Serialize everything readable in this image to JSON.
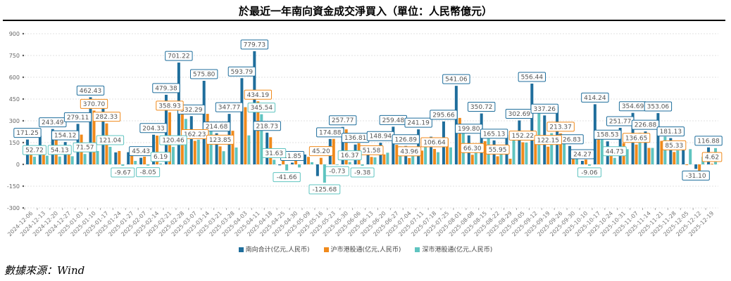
{
  "title": "於最近一年南向資金成交淨買入（單位：人民幣億元）",
  "source": "數據來源：Wind",
  "chart_data": {
    "type": "bar",
    "title": "於最近一年南向資金成交淨買入（單位：人民幣億元）",
    "xlabel": "",
    "ylabel": "",
    "ylim": [
      -300,
      900
    ],
    "yticks": [
      -300,
      -150,
      0,
      150,
      300,
      450,
      600,
      750,
      900
    ],
    "grid": true,
    "legend_position": "bottom",
    "categories": [
      "2024-12-06",
      "2024-12-13",
      "2024-12-20",
      "2024-12-27",
      "2025-01-03",
      "2025-01-10",
      "2025-01-17",
      "2025-01-24",
      "2025-01-27",
      "2025-02-07",
      "2025-02-14",
      "2025-02-21",
      "2025-02-28",
      "2025-03-07",
      "2025-03-14",
      "2025-03-21",
      "2025-03-28",
      "2025-04-03",
      "2025-04-11",
      "2025-04-18",
      "2025-04-25",
      "2025-04-30",
      "2025-05-09",
      "2025-05-16",
      "2025-05-23",
      "2025-05-30",
      "2025-06-06",
      "2025-06-13",
      "2025-06-20",
      "2025-06-27",
      "2025-07-04",
      "2025-07-11",
      "2025-07-18",
      "2025-07-25",
      "2025-08-01",
      "2025-08-08",
      "2025-08-15",
      "2025-08-22",
      "2025-08-29",
      "2025-09-05",
      "2025-09-12",
      "2025-09-19",
      "2025-09-26",
      "2025-09-30",
      "2025-10-10",
      "2025-10-17",
      "2025-10-24",
      "2025-10-31",
      "2025-11-07",
      "2025-11-14",
      "2025-11-21",
      "2025-11-28",
      "2025-12-05",
      "2025-12-12",
      "2025-12-19"
    ],
    "series": [
      {
        "name": "南向合计(亿元,人民币)",
        "color": "#1f6e9c",
        "values": [
          171.25,
          197,
          243.49,
          154.12,
          279.11,
          462.43,
          403.37,
          82.6,
          84,
          45.43,
          204.33,
          479.38,
          701.22,
          332.29,
          575.8,
          214.68,
          347.77,
          593.79,
          779.73,
          218.73,
          -6.16,
          11.85,
          68,
          -80.48,
          174.88,
          257.77,
          136.81,
          100,
          148.94,
          259.48,
          126.89,
          241.19,
          190.5,
          295.66,
          541.06,
          199.8,
          350.72,
          165.13,
          204,
          302.69,
          556.44,
          337.26,
          398,
          126.83,
          24.27,
          414.24,
          158.53,
          251.77,
          354.69,
          226.88,
          353.06,
          181.13,
          100,
          -31.1,
          116.88
        ],
        "labeled": [
          0,
          2,
          3,
          4,
          5,
          9,
          10,
          11,
          12,
          13,
          14,
          15,
          16,
          17,
          18,
          19,
          21,
          24,
          25,
          26,
          28,
          29,
          30,
          31,
          33,
          34,
          35,
          36,
          37,
          39,
          40,
          41,
          43,
          44,
          45,
          46,
          47,
          48,
          49,
          50,
          51,
          53,
          54
        ]
      },
      {
        "name": "沪市港股通(亿元,人民币)",
        "color": "#f08a1c",
        "values": [
          118.53,
          132,
          168,
          92,
          205,
          370.7,
          282.33,
          92.27,
          60,
          53.48,
          198.14,
          358.93,
          388,
          162.23,
          348,
          123.85,
          231.5,
          394,
          434.19,
          187.1,
          35.5,
          33,
          52,
          45.2,
          175.61,
          241.4,
          146.19,
          51.58,
          68.5,
          135,
          43.96,
          95,
          106.64,
          178.5,
          320,
          66.3,
          160,
          55.95,
          39,
          152.22,
          190,
          122.15,
          213.37,
          75,
          33.33,
          205,
          113.8,
          146.77,
          136.65,
          113.44,
          162,
          85.33,
          -5,
          -45,
          4.62
        ],
        "labeled": [
          5,
          6,
          11,
          13,
          15,
          18,
          23,
          27,
          30,
          32,
          35,
          37,
          39,
          41,
          42,
          48,
          51,
          54
        ]
      },
      {
        "name": "深市港股通(亿元,人民币)",
        "color": "#5fc4c0",
        "values": [
          52.72,
          60,
          54.13,
          56,
          71.57,
          92,
          121.04,
          -9.67,
          24,
          -8.05,
          6.19,
          120.46,
          313.22,
          170,
          227.8,
          90.83,
          116.27,
          199.79,
          345.54,
          31.63,
          -41.66,
          -21.15,
          15,
          -125.68,
          -0.73,
          16.37,
          -9.38,
          48.42,
          80.44,
          124.48,
          82.93,
          146.19,
          83.86,
          117.16,
          221.06,
          133.5,
          190.72,
          109.18,
          165,
          150.47,
          366.44,
          215.11,
          184.63,
          51.83,
          -9.06,
          209.24,
          44.73,
          105,
          218.04,
          113.44,
          191.06,
          95.8,
          105,
          52,
          112.26
        ],
        "labeled": [
          0,
          2,
          4,
          6,
          7,
          9,
          10,
          11,
          18,
          19,
          20,
          23,
          24,
          25,
          26,
          44,
          46
        ]
      }
    ]
  }
}
